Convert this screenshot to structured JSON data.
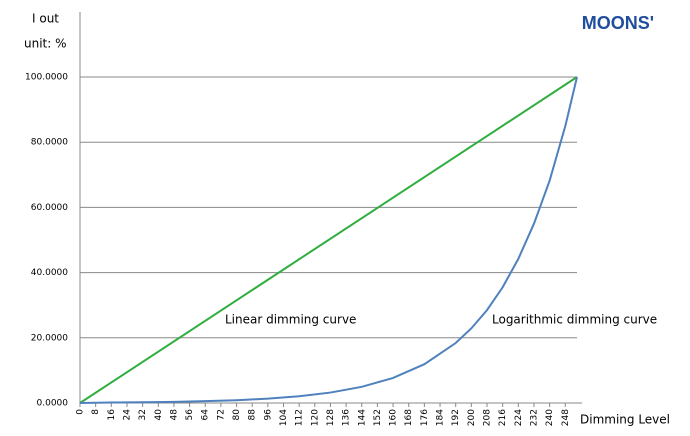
{
  "chart_data": {
    "type": "line",
    "brand": "MOONS'",
    "y_label_lines": [
      "I out",
      "unit: %"
    ],
    "x_label": "Dimming Level",
    "annotations": [
      "Linear dimming curve",
      "Logarithmic dimming curve"
    ],
    "xlim": [
      0,
      254
    ],
    "xticks": [
      0,
      8,
      16,
      24,
      32,
      40,
      48,
      56,
      64,
      72,
      80,
      88,
      96,
      104,
      112,
      120,
      128,
      136,
      144,
      152,
      160,
      168,
      176,
      184,
      192,
      200,
      208,
      216,
      224,
      232,
      240,
      248
    ],
    "ylim": [
      0,
      100
    ],
    "yticks": [
      {
        "value": 0,
        "label": "0.0000"
      },
      {
        "value": 20,
        "label": "20.0000"
      },
      {
        "value": 40,
        "label": "40.0000"
      },
      {
        "value": 60,
        "label": "60.0000"
      },
      {
        "value": 80,
        "label": "80.0000"
      },
      {
        "value": 100,
        "label": "100.0000"
      }
    ],
    "grid": true,
    "series": [
      {
        "color": "#2fae3f",
        "x": [
          0,
          254
        ],
        "values": [
          0,
          100
        ]
      },
      {
        "color": "#4f81bd",
        "x": [
          0,
          16,
          32,
          48,
          64,
          80,
          96,
          112,
          128,
          144,
          160,
          176,
          192,
          200,
          208,
          216,
          224,
          232,
          240,
          248,
          254
        ],
        "values": [
          0,
          0.15,
          0.23,
          0.36,
          0.56,
          0.86,
          1.34,
          2.07,
          3.2,
          4.96,
          7.68,
          11.9,
          18.4,
          22.9,
          28.5,
          35.5,
          44.2,
          55.0,
          68.2,
          84.9,
          100
        ]
      }
    ]
  }
}
